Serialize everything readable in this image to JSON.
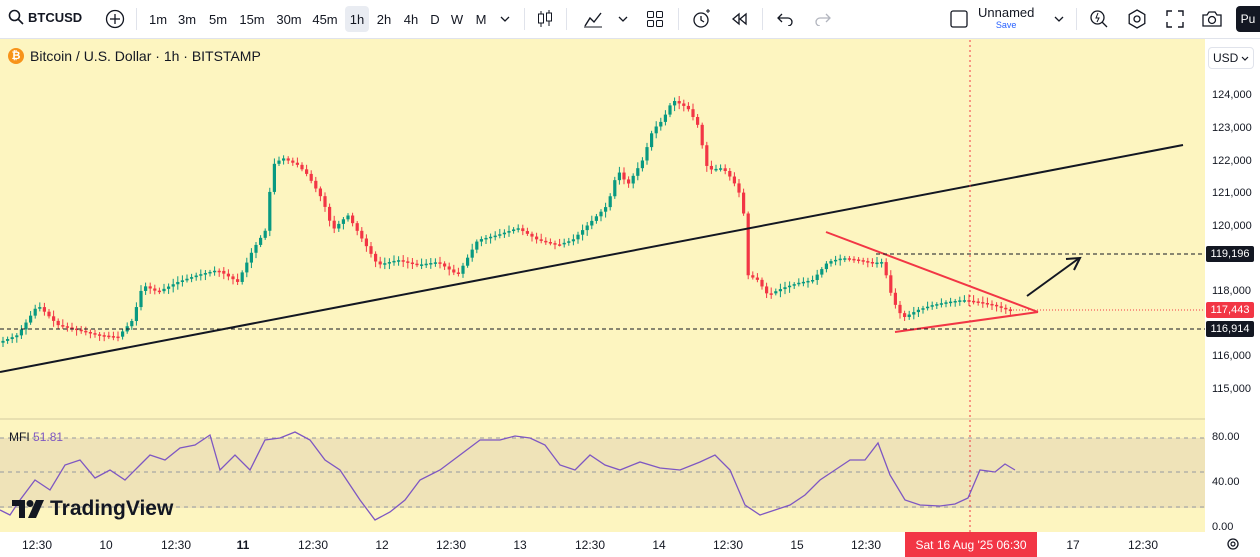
{
  "toolbar": {
    "symbol": "BTCUSD",
    "intervals": [
      "1m",
      "3m",
      "5m",
      "15m",
      "30m",
      "45m",
      "1h",
      "2h",
      "4h",
      "D",
      "W",
      "M"
    ],
    "active_interval": "1h",
    "layout_name": "Unnamed",
    "save_label": "Save",
    "publish_label": "Pu"
  },
  "legend": {
    "title": "Bitcoin / U.S. Dollar · 1h · BITSTAMP",
    "currency": "USD"
  },
  "price_axis": {
    "labels": [
      "124,000",
      "123,000",
      "122,000",
      "121,000",
      "120,000",
      "118,000",
      "116,000",
      "115,000"
    ],
    "tags": [
      {
        "value": "119,196",
        "color": "#131722"
      },
      {
        "value": "117,443",
        "color": "#f23645"
      },
      {
        "value": "116,914",
        "color": "#131722"
      }
    ]
  },
  "time_axis": {
    "labels": [
      "12:30",
      "10",
      "12:30",
      "11",
      "12:30",
      "12",
      "12:30",
      "13",
      "12:30",
      "14",
      "12:30",
      "15",
      "12:30",
      "17",
      "12:30"
    ],
    "crosshair_label": "Sat 16 Aug '25   06:30"
  },
  "indicator": {
    "name": "MFI",
    "value": "51.81",
    "axis_labels": [
      "80.00",
      "40.00",
      "0.00"
    ],
    "line_color": "#7e57c2"
  },
  "branding": {
    "text": "TradingView"
  },
  "colors": {
    "up": "#089981",
    "down": "#f23645",
    "background": "#fdf5c0"
  }
}
